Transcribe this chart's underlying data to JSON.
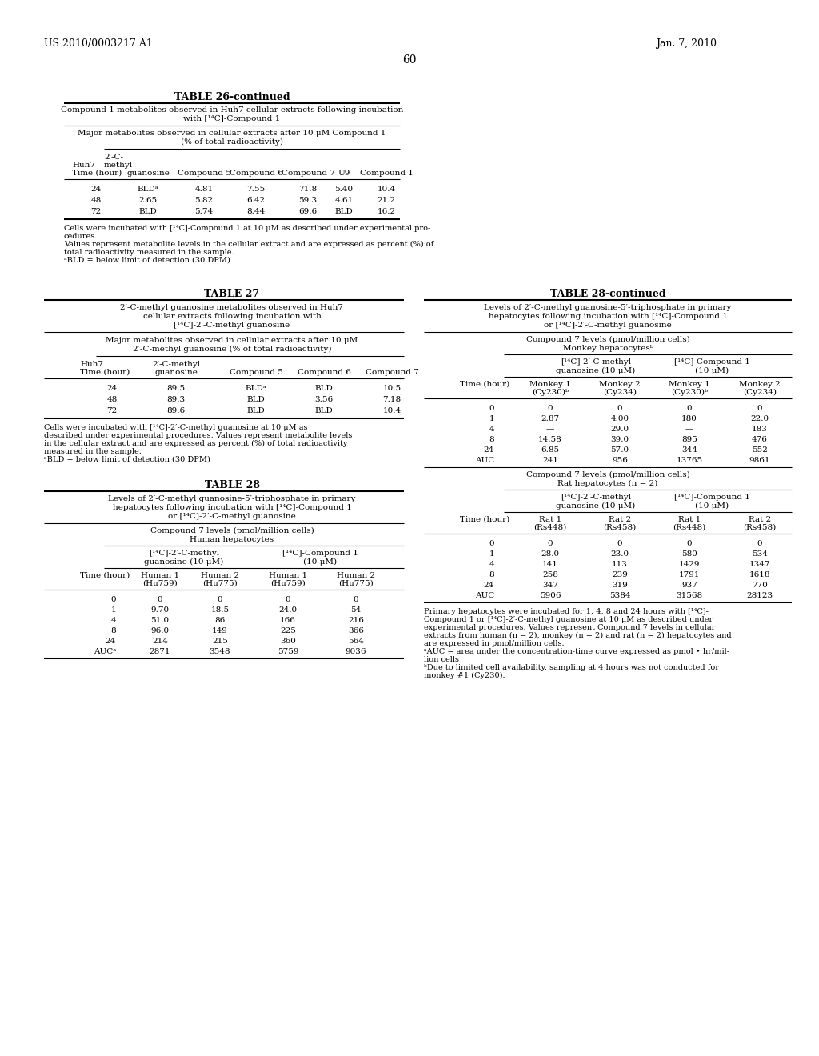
{
  "header_left": "US 2010/0003217 A1",
  "header_right": "Jan. 7, 2010",
  "page_number": "60",
  "background_color": "#ffffff"
}
